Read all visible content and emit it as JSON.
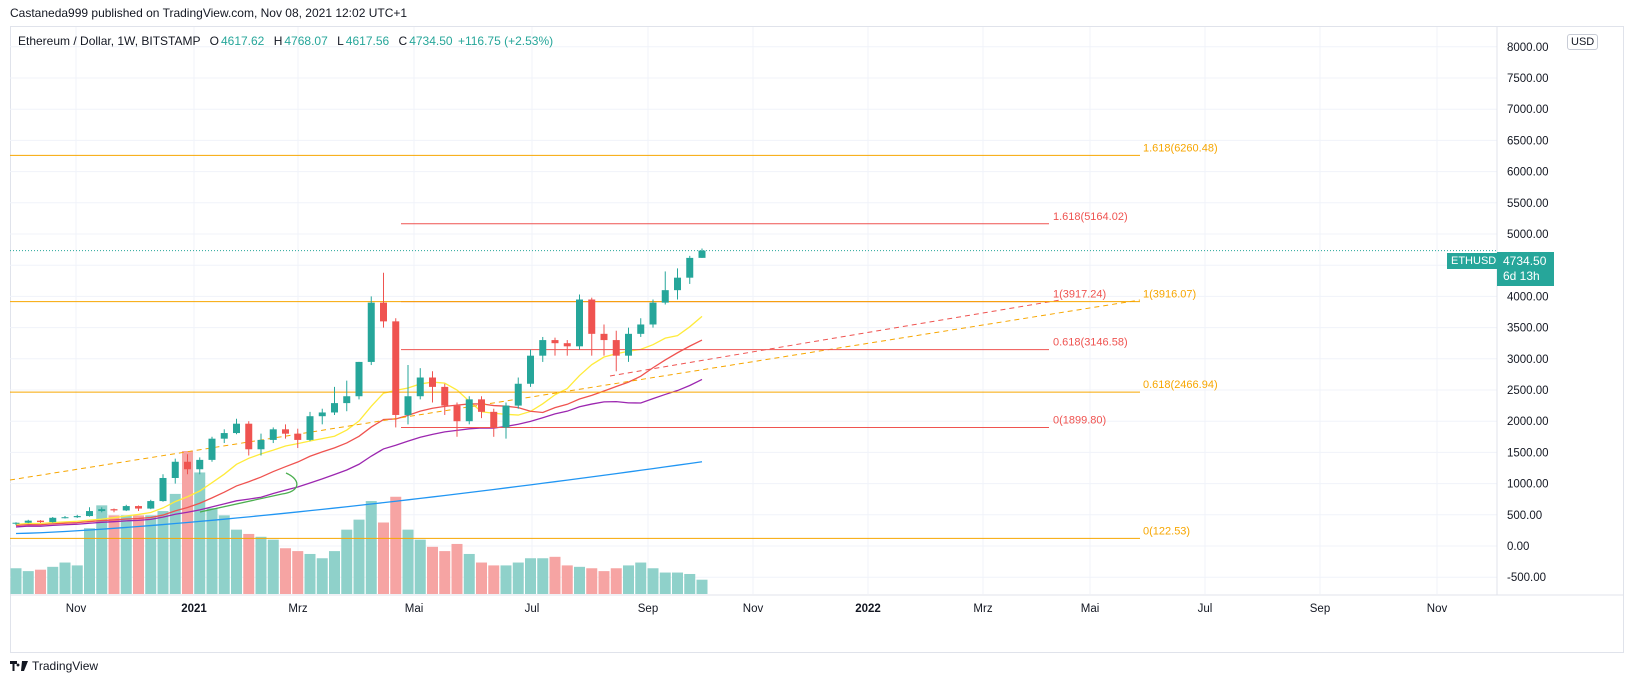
{
  "header": {
    "published_line": "Castaneda999 published on TradingView.com, Nov 08, 2021 12:02 UTC+1"
  },
  "legend": {
    "symbol": "Ethereum / Dollar, 1W, BITSTAMP",
    "o_key": "O",
    "o_val": "4617.62",
    "h_key": "H",
    "h_val": "4768.07",
    "l_key": "L",
    "l_val": "4617.56",
    "c_key": "C",
    "c_val": "4734.50",
    "change": "+116.75 (+2.53%)"
  },
  "currency_button": "USD",
  "last_price": {
    "symbol": "ETHUSD",
    "price": "4734.50",
    "countdown": "6d 13h"
  },
  "footer": {
    "brand": "TradingView"
  },
  "colors": {
    "up": "#26a69a",
    "down": "#ef5350",
    "vol_up": "#8fd1ca",
    "vol_down": "#f6a4a3",
    "fib_orange": "#f7a600",
    "fib_red": "#ef5350",
    "ma_yellow": "#ffeb3b",
    "ma_red": "#ef5350",
    "ma_purple": "#9c27b0",
    "ma_blue": "#2196f3",
    "ma_green": "#4caf50"
  },
  "chart_data": {
    "type": "candlestick",
    "timeframe": "1W",
    "y_ticks": [
      "8000.00",
      "7500.00",
      "7000.00",
      "6500.00",
      "6000.00",
      "5500.00",
      "5000.00",
      "4500.00",
      "4000.00",
      "3500.00",
      "3000.00",
      "2500.00",
      "2000.00",
      "1500.00",
      "1000.00",
      "500.00",
      "0.00",
      "-500.00"
    ],
    "x_ticks": [
      "Nov",
      "2021",
      "Mrz",
      "Mai",
      "Jul",
      "Sep",
      "Nov",
      "2022",
      "Mrz",
      "Mai",
      "Jul",
      "Sep",
      "Nov"
    ],
    "ylim": [
      -800,
      8100
    ],
    "candles": [
      [
        0,
        "2020-10-12",
        366,
        381,
        335,
        373
      ],
      [
        1,
        "2020-10-19",
        373,
        420,
        365,
        406
      ],
      [
        2,
        "2020-10-26",
        406,
        415,
        370,
        383
      ],
      [
        3,
        "2020-11-02",
        383,
        465,
        375,
        452
      ],
      [
        4,
        "2020-11-09",
        452,
        480,
        440,
        461
      ],
      [
        5,
        "2020-11-16",
        461,
        500,
        450,
        480
      ],
      [
        6,
        "2020-11-23",
        480,
        620,
        470,
        560
      ],
      [
        7,
        "2020-11-30",
        560,
        620,
        540,
        590
      ],
      [
        8,
        "2020-12-07",
        590,
        600,
        540,
        570
      ],
      [
        9,
        "2020-12-14",
        570,
        660,
        560,
        640
      ],
      [
        10,
        "2020-12-21",
        640,
        650,
        560,
        600
      ],
      [
        11,
        "2020-12-28",
        600,
        740,
        590,
        720
      ],
      [
        12,
        "2021-01-04",
        720,
        1150,
        710,
        1090
      ],
      [
        13,
        "2021-01-11",
        1090,
        1400,
        1000,
        1350
      ],
      [
        14,
        "2021-01-18",
        1350,
        1470,
        1150,
        1230
      ],
      [
        15,
        "2021-01-25",
        1230,
        1420,
        1150,
        1380
      ],
      [
        16,
        "2021-02-01",
        1380,
        1750,
        1350,
        1720
      ],
      [
        17,
        "2021-02-08",
        1720,
        1870,
        1650,
        1810
      ],
      [
        18,
        "2021-02-15",
        1810,
        2040,
        1790,
        1960
      ],
      [
        19,
        "2021-02-22",
        1960,
        2000,
        1450,
        1550
      ],
      [
        20,
        "2021-03-01",
        1550,
        1800,
        1450,
        1700
      ],
      [
        21,
        "2021-03-08",
        1700,
        1900,
        1650,
        1870
      ],
      [
        22,
        "2021-03-15",
        1870,
        1950,
        1720,
        1800
      ],
      [
        23,
        "2021-03-22",
        1800,
        1880,
        1570,
        1700
      ],
      [
        24,
        "2021-03-29",
        1700,
        2150,
        1680,
        2080
      ],
      [
        25,
        "2021-04-05",
        2080,
        2200,
        1950,
        2140
      ],
      [
        26,
        "2021-04-12",
        2140,
        2550,
        2100,
        2290
      ],
      [
        27,
        "2021-04-19",
        2290,
        2650,
        2160,
        2400
      ],
      [
        28,
        "2021-04-26",
        2400,
        2950,
        2350,
        2950
      ],
      [
        29,
        "2021-05-03",
        2950,
        4000,
        2900,
        3900
      ],
      [
        30,
        "2021-05-10",
        3900,
        4380,
        3500,
        3600
      ],
      [
        31,
        "2021-05-17",
        3600,
        3650,
        1900,
        2100
      ],
      [
        32,
        "2021-05-24",
        2100,
        2900,
        1950,
        2400
      ],
      [
        33,
        "2021-05-31",
        2400,
        2850,
        2350,
        2700
      ],
      [
        34,
        "2021-06-07",
        2700,
        2800,
        2300,
        2550
      ],
      [
        35,
        "2021-06-14",
        2550,
        2600,
        2100,
        2250
      ],
      [
        36,
        "2021-06-21",
        2250,
        2300,
        1750,
        2000
      ],
      [
        37,
        "2021-06-28",
        2000,
        2400,
        1950,
        2350
      ],
      [
        38,
        "2021-07-05",
        2350,
        2400,
        2050,
        2150
      ],
      [
        39,
        "2021-07-12",
        2150,
        2200,
        1750,
        1900
      ],
      [
        40,
        "2021-07-19",
        1900,
        2300,
        1720,
        2250
      ],
      [
        41,
        "2021-07-26",
        2250,
        2700,
        2200,
        2600
      ],
      [
        42,
        "2021-08-02",
        2600,
        3150,
        2550,
        3050
      ],
      [
        43,
        "2021-08-09",
        3050,
        3350,
        2950,
        3300
      ],
      [
        44,
        "2021-08-16",
        3300,
        3340,
        3050,
        3250
      ],
      [
        45,
        "2021-08-23",
        3250,
        3300,
        3050,
        3200
      ],
      [
        46,
        "2021-08-30",
        3200,
        4030,
        3150,
        3950
      ],
      [
        47,
        "2021-09-06",
        3950,
        3980,
        3050,
        3400
      ],
      [
        48,
        "2021-09-13",
        3400,
        3550,
        3050,
        3300
      ],
      [
        49,
        "2021-09-20",
        3300,
        3450,
        2800,
        3050
      ],
      [
        50,
        "2021-09-27",
        3050,
        3500,
        2950,
        3400
      ],
      [
        51,
        "2021-10-04",
        3400,
        3650,
        3350,
        3550
      ],
      [
        52,
        "2021-10-11",
        3550,
        3950,
        3500,
        3900
      ],
      [
        53,
        "2021-10-18",
        3900,
        4400,
        3870,
        4100
      ],
      [
        54,
        "2021-10-25",
        4100,
        4450,
        3950,
        4300
      ],
      [
        55,
        "2021-11-01",
        4300,
        4650,
        4200,
        4617
      ],
      [
        56,
        "2021-11-08",
        4617.62,
        4768.07,
        4617.56,
        4734.5
      ]
    ],
    "volume_relative": [
      0.18,
      0.16,
      0.17,
      0.19,
      0.22,
      0.2,
      0.46,
      0.62,
      0.55,
      0.55,
      0.55,
      0.55,
      0.58,
      0.7,
      1.0,
      0.85,
      0.6,
      0.55,
      0.45,
      0.42,
      0.4,
      0.38,
      0.32,
      0.3,
      0.28,
      0.25,
      0.3,
      0.45,
      0.52,
      0.65,
      0.5,
      0.68,
      0.45,
      0.38,
      0.33,
      0.3,
      0.35,
      0.28,
      0.22,
      0.2,
      0.2,
      0.22,
      0.25,
      0.25,
      0.26,
      0.2,
      0.19,
      0.18,
      0.16,
      0.18,
      0.2,
      0.22,
      0.18,
      0.15,
      0.15,
      0.14,
      0.1
    ],
    "fib_levels": [
      {
        "label": "1.618(6260.48)",
        "value": 6260.48,
        "color": "orange",
        "span": "full"
      },
      {
        "label": "1.618(5164.02)",
        "value": 5164.02,
        "color": "red",
        "span": "mid"
      },
      {
        "label": "1(3917.24)",
        "value": 3917.24,
        "color": "red",
        "span": "mid"
      },
      {
        "label": "1(3916.07)",
        "value": 3916.07,
        "color": "orange",
        "span": "full"
      },
      {
        "label": "0.618(3146.58)",
        "value": 3146.58,
        "color": "red",
        "span": "mid"
      },
      {
        "label": "0.618(2466.94)",
        "value": 2466.94,
        "color": "orange",
        "span": "full"
      },
      {
        "label": "0(1899.80)",
        "value": 1899.8,
        "color": "red",
        "span": "mid"
      },
      {
        "label": "0(122.53)",
        "value": 122.53,
        "color": "orange",
        "span": "full"
      }
    ]
  }
}
